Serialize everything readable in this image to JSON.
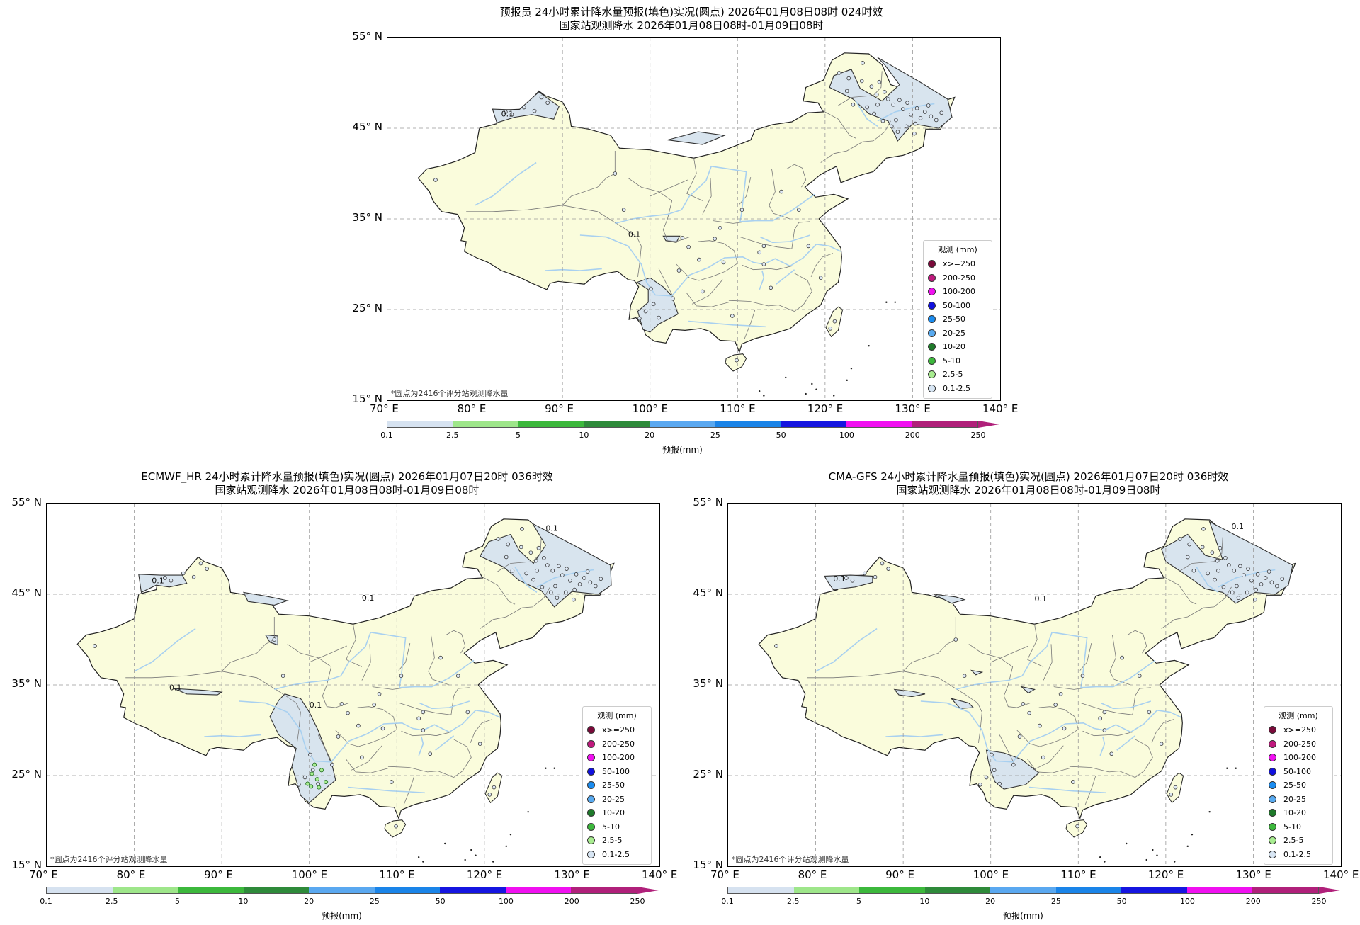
{
  "panels": [
    {
      "title_line1": "预报员 24小时累计降水量预报(填色)实况(圆点) 2026年01月08日08时 024时效",
      "title_line2": "国家站观测降水 2026年01月08日08时-01月09日08时"
    },
    {
      "title_line1": "ECMWF_HR 24小时累计降水量预报(填色)实况(圆点) 2026年01月07日20时 036时效",
      "title_line2": "国家站观测降水 2026年01月08日08时-01月09日08时"
    },
    {
      "title_line1": "CMA-GFS 24小时累计降水量预报(填色)实况(圆点) 2026年01月07日20时 036时效",
      "title_line2": "国家站观测降水 2026年01月08日08时-01月09日08时"
    }
  ],
  "axes": {
    "lat_ticks": [
      "55° N",
      "45° N",
      "35° N",
      "25° N",
      "15° N"
    ],
    "lon_ticks": [
      "70° E",
      "80° E",
      "90° E",
      "100° E",
      "110° E",
      "120° E",
      "130° E",
      "140° E"
    ]
  },
  "note": "*圆点为2416个评分站观测降水量",
  "contour_label": "0.1",
  "legend": {
    "title": "观测 (mm)",
    "items": [
      {
        "label": "x>=250",
        "color": "#7a0a3a"
      },
      {
        "label": "200-250",
        "color": "#c0197e"
      },
      {
        "label": "100-200",
        "color": "#f010f0"
      },
      {
        "label": "50-100",
        "color": "#1010e0"
      },
      {
        "label": "25-50",
        "color": "#1a8cf0"
      },
      {
        "label": "20-25",
        "color": "#58aaf0"
      },
      {
        "label": "10-20",
        "color": "#1e7a2a"
      },
      {
        "label": "5-10",
        "color": "#3cb83c"
      },
      {
        "label": "2.5-5",
        "color": "#a8ec90"
      },
      {
        "label": "0.1-2.5",
        "color": "#d8e6f4"
      }
    ]
  },
  "colorbar": {
    "label": "预报(mm)",
    "ticks": [
      "0.1",
      "2.5",
      "5",
      "10",
      "20",
      "25",
      "50",
      "100",
      "200",
      "250"
    ],
    "colors": [
      "#d6e2f0",
      "#9ee68a",
      "#3cb83c",
      "#2e8a3a",
      "#5aa8f0",
      "#1a84e8",
      "#1515e0",
      "#f010f0",
      "#b0207a"
    ]
  },
  "colors": {
    "land": "#fafcdc",
    "rain_light": "#d8e4ee",
    "river": "#a8d0f0",
    "border": "#444444"
  },
  "chart_data": {
    "type": "map",
    "variable": "24h accumulated precipitation",
    "unit": "mm",
    "extent": {
      "lon": [
        70,
        140
      ],
      "lat": [
        15,
        55
      ]
    }
  }
}
